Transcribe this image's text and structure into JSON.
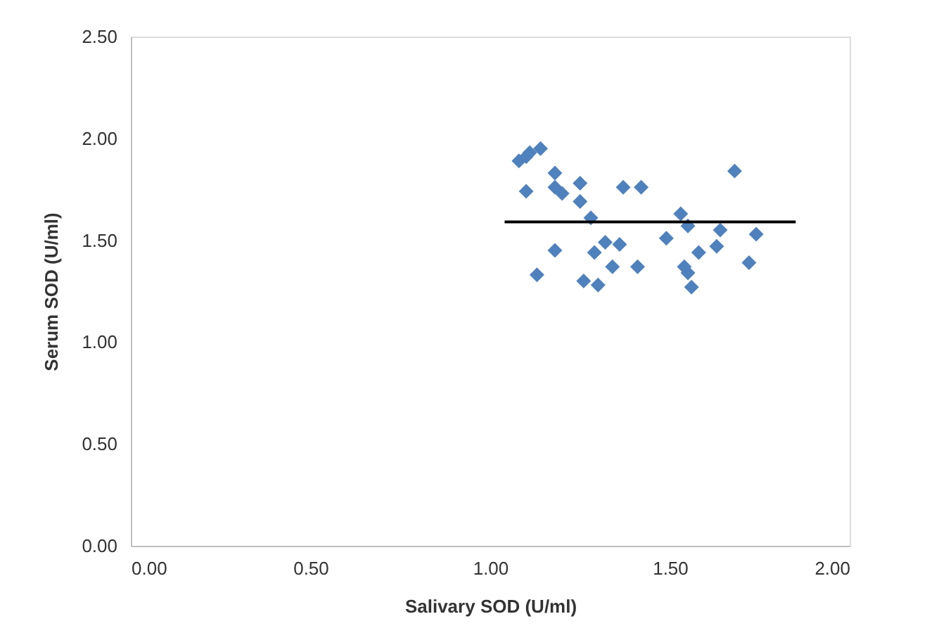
{
  "chart_data": {
    "type": "scatter",
    "xlabel": "Salivary SOD (U/ml)",
    "ylabel": "Serum SOD (U/ml)",
    "xlim": [
      0,
      2
    ],
    "xticks": [
      {
        "value": 0,
        "label": "0.00"
      },
      {
        "value": 0.5,
        "label": "0.50"
      },
      {
        "value": 1,
        "label": "1.00"
      },
      {
        "value": 1.5,
        "label": "1.50"
      },
      {
        "value": 2,
        "label": "2.00"
      }
    ],
    "ylim": [
      0,
      2.5
    ],
    "yticks": [
      {
        "value": 0,
        "label": "0.00"
      },
      {
        "value": 0.5,
        "label": "0.50"
      },
      {
        "value": 1,
        "label": "1.00"
      },
      {
        "value": 1.5,
        "label": "1.50"
      },
      {
        "value": 2,
        "label": "2.00"
      },
      {
        "value": 2.5,
        "label": "2.50"
      }
    ],
    "grid": false,
    "legend": false,
    "marker": "diamond",
    "series": [
      {
        "color": "#4f81bd",
        "x": [
          1.08,
          1.1,
          1.11,
          1.14,
          1.1,
          1.13,
          1.18,
          1.18,
          1.2,
          1.18,
          1.25,
          1.25,
          1.28,
          1.26,
          1.29,
          1.3,
          1.32,
          1.34,
          1.36,
          1.37,
          1.42,
          1.41,
          1.49,
          1.53,
          1.55,
          1.54,
          1.55,
          1.56,
          1.58,
          1.63,
          1.64,
          1.68,
          1.72,
          1.74
        ],
        "values": [
          1.89,
          1.91,
          1.93,
          1.95,
          1.74,
          1.33,
          1.83,
          1.76,
          1.73,
          1.45,
          1.78,
          1.69,
          1.61,
          1.3,
          1.44,
          1.28,
          1.49,
          1.37,
          1.48,
          1.76,
          1.76,
          1.37,
          1.51,
          1.63,
          1.57,
          1.37,
          1.34,
          1.27,
          1.44,
          1.47,
          1.55,
          1.84,
          1.39,
          1.53
        ]
      },
      {
        "type": "line",
        "color": "#000000",
        "line_style": "solid",
        "marker": "none",
        "x": [
          1.04,
          1.85
        ],
        "values": [
          1.59,
          1.59
        ]
      }
    ]
  }
}
